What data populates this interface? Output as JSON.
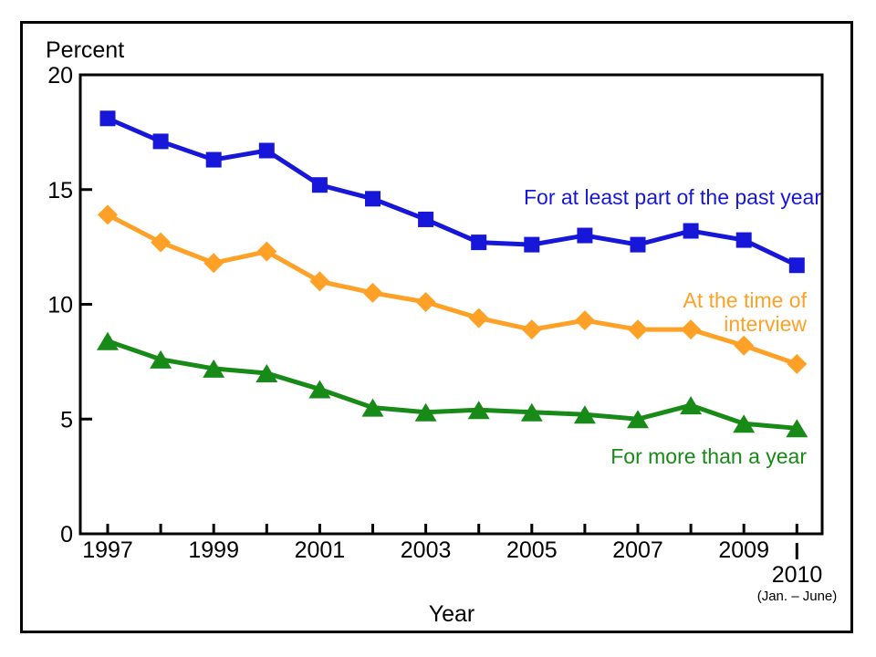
{
  "figure": {
    "y_axis_title": "Percent",
    "x_axis_title": "Year"
  },
  "x_axis": {
    "final_tick_label": "2010",
    "final_tick_note": "(Jan. – June)"
  },
  "chart_data": {
    "type": "line",
    "title": "",
    "xlabel": "Year",
    "ylabel": "Percent",
    "ylim": [
      0,
      20
    ],
    "y_ticks": [
      0,
      5,
      10,
      15,
      20
    ],
    "grid": false,
    "x": [
      1997,
      1998,
      1999,
      2000,
      2001,
      2002,
      2003,
      2004,
      2005,
      2006,
      2007,
      2008,
      2009,
      2010
    ],
    "x_major_tick_labels": [
      "1997",
      "1999",
      "2001",
      "2003",
      "2005",
      "2007",
      "2009"
    ],
    "x_final_label": "2010",
    "x_final_note": "(Jan. – June)",
    "legend_position": "labels next to lines, right side",
    "series": [
      {
        "name": "For at least part of the past year",
        "label_lines": [
          "For at least part of the past year"
        ],
        "color": "#1717d9",
        "marker": "square",
        "values": [
          18.1,
          17.1,
          16.3,
          16.7,
          15.2,
          14.6,
          13.7,
          12.7,
          12.6,
          13.0,
          12.6,
          13.2,
          12.8,
          11.7
        ]
      },
      {
        "name": "At the time of interview",
        "label_lines": [
          "At the time of",
          "interview"
        ],
        "color": "#ffa126",
        "marker": "diamond",
        "values": [
          13.9,
          12.7,
          11.8,
          12.3,
          11.0,
          10.5,
          10.1,
          9.4,
          8.9,
          9.3,
          8.9,
          8.9,
          8.2,
          7.4
        ]
      },
      {
        "name": "For more than a year",
        "label_lines": [
          "For more than a year"
        ],
        "color": "#178a17",
        "marker": "triangle",
        "values": [
          8.4,
          7.6,
          7.2,
          7.0,
          6.3,
          5.5,
          5.3,
          5.4,
          5.3,
          5.2,
          5.0,
          5.6,
          4.8,
          4.6
        ]
      }
    ]
  }
}
